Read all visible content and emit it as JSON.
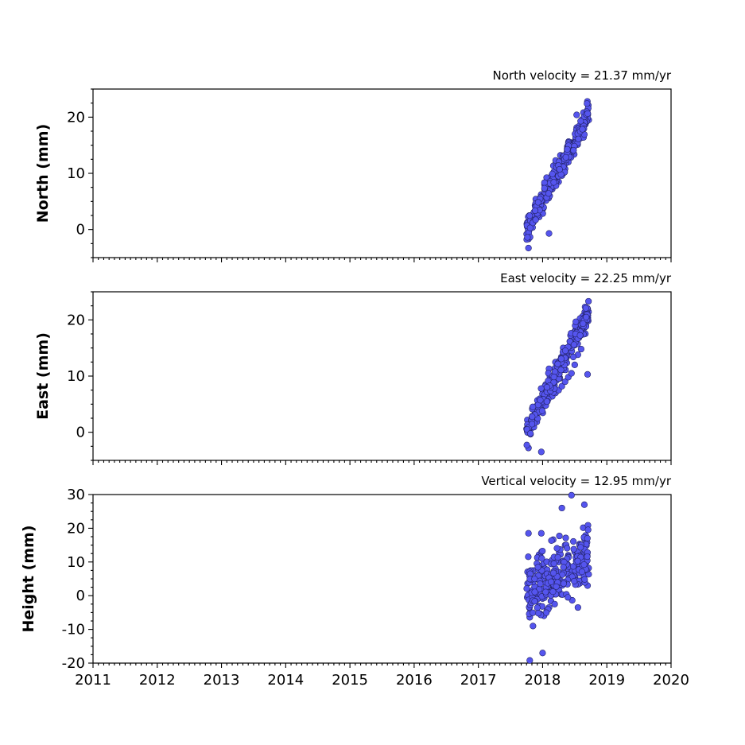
{
  "chart_data": [
    {
      "type": "scatter",
      "title": "North velocity = 21.37 mm/yr",
      "xlabel": "",
      "ylabel": "North (mm)",
      "xlim": [
        2011,
        2020
      ],
      "ylim": [
        -5,
        25
      ],
      "yticks": [
        0,
        10,
        20
      ],
      "velocity_mm_per_yr": 21.37,
      "point_color": "#5555ee",
      "time_range": [
        2017.75,
        2018.72
      ],
      "points_approx": [
        [
          2017.76,
          0.5
        ],
        [
          2017.78,
          -3.3
        ],
        [
          2017.8,
          1.8
        ],
        [
          2017.85,
          2.5
        ],
        [
          2017.9,
          3.2
        ],
        [
          2017.95,
          4.5
        ],
        [
          2018.0,
          5.0
        ],
        [
          2018.05,
          6.0
        ],
        [
          2018.1,
          -0.7
        ],
        [
          2018.15,
          7.2
        ],
        [
          2018.2,
          7.8
        ],
        [
          2018.25,
          8.5
        ],
        [
          2018.3,
          9.6
        ],
        [
          2018.35,
          10.8
        ],
        [
          2018.4,
          12.0
        ],
        [
          2018.45,
          13.5
        ],
        [
          2018.5,
          15.0
        ],
        [
          2018.55,
          16.2
        ],
        [
          2018.6,
          17.5
        ],
        [
          2018.65,
          19.4
        ],
        [
          2018.7,
          21.3
        ],
        [
          2018.53,
          20.4
        ]
      ]
    },
    {
      "type": "scatter",
      "title": "East velocity = 22.25 mm/yr",
      "xlabel": "",
      "ylabel": "East (mm)",
      "xlim": [
        2011,
        2020
      ],
      "ylim": [
        -5,
        25
      ],
      "yticks": [
        0,
        10,
        20
      ],
      "velocity_mm_per_yr": 22.25,
      "point_color": "#5555ee",
      "time_range": [
        2017.75,
        2018.72
      ],
      "points_approx": [
        [
          2017.76,
          0.2
        ],
        [
          2017.78,
          -2.8
        ],
        [
          2017.82,
          1.5
        ],
        [
          2017.88,
          2.8
        ],
        [
          2017.93,
          3.5
        ],
        [
          2017.98,
          -3.5
        ],
        [
          2018.0,
          4.5
        ],
        [
          2018.05,
          5.2
        ],
        [
          2018.1,
          11.3
        ],
        [
          2018.15,
          6.4
        ],
        [
          2018.2,
          7.0
        ],
        [
          2018.25,
          7.5
        ],
        [
          2018.3,
          8.2
        ],
        [
          2018.35,
          9.0
        ],
        [
          2018.4,
          9.8
        ],
        [
          2018.45,
          10.5
        ],
        [
          2018.5,
          12.0
        ],
        [
          2018.55,
          13.8
        ],
        [
          2018.6,
          14.8
        ],
        [
          2018.65,
          18.6
        ],
        [
          2018.68,
          22.0
        ],
        [
          2018.7,
          10.3
        ]
      ]
    },
    {
      "type": "scatter",
      "title": "Vertical velocity = 12.95 mm/yr",
      "xlabel": "",
      "ylabel": "Height (mm)",
      "xlim": [
        2011,
        2020
      ],
      "ylim": [
        -20,
        30
      ],
      "yticks": [
        -20,
        -10,
        0,
        10,
        20,
        30
      ],
      "xticks": [
        2011,
        2012,
        2013,
        2014,
        2015,
        2016,
        2017,
        2018,
        2019,
        2020
      ],
      "velocity_mm_per_yr": 12.95,
      "point_color": "#5555ee",
      "time_range": [
        2017.75,
        2018.72
      ],
      "points_approx": [
        [
          2017.76,
          -0.5
        ],
        [
          2017.78,
          18.5
        ],
        [
          2017.8,
          -19.2
        ],
        [
          2017.85,
          -9.0
        ],
        [
          2017.9,
          5.0
        ],
        [
          2017.95,
          -3.0
        ],
        [
          2017.98,
          18.5
        ],
        [
          2018.0,
          -17.0
        ],
        [
          2018.05,
          2.0
        ],
        [
          2018.1,
          -3.5
        ],
        [
          2018.15,
          5.5
        ],
        [
          2018.2,
          8.0
        ],
        [
          2018.25,
          10.0
        ],
        [
          2018.3,
          26.0
        ],
        [
          2018.35,
          15.0
        ],
        [
          2018.4,
          12.0
        ],
        [
          2018.45,
          29.8
        ],
        [
          2018.5,
          13.0
        ],
        [
          2018.55,
          -3.5
        ],
        [
          2018.6,
          10.5
        ],
        [
          2018.65,
          27.0
        ],
        [
          2018.7,
          3.0
        ]
      ]
    }
  ]
}
